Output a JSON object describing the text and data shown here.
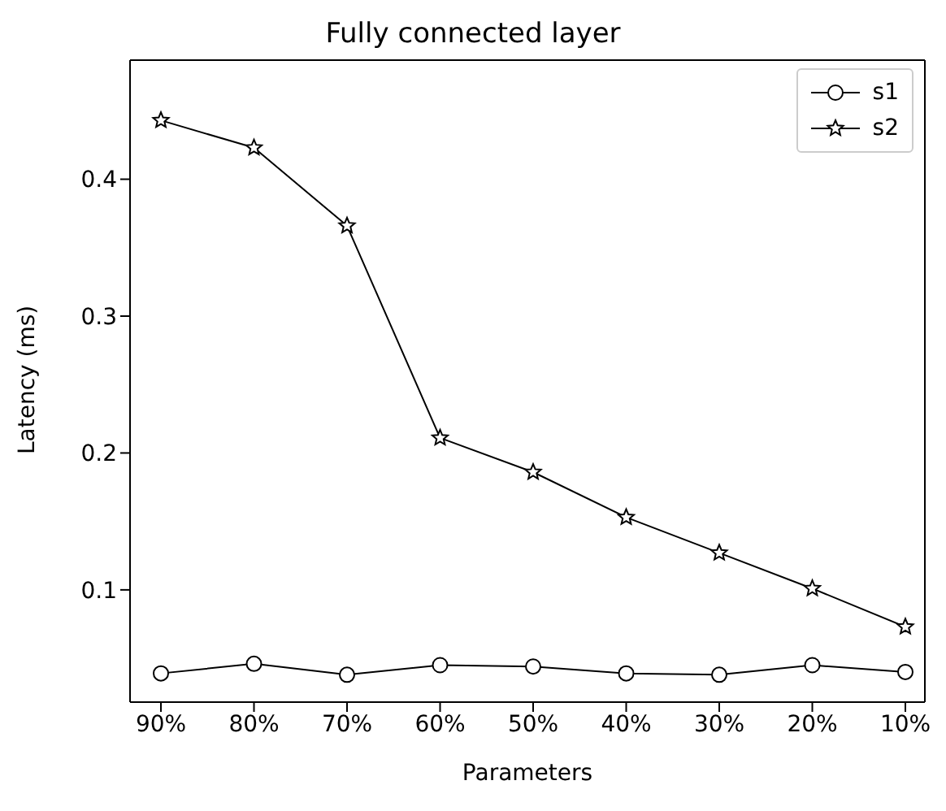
{
  "chart_data": {
    "type": "line",
    "title": "Fully connected layer",
    "xlabel": "Parameters",
    "ylabel": "Latency (ms)",
    "categories": [
      "90%",
      "80%",
      "70%",
      "60%",
      "50%",
      "40%",
      "30%",
      "20%",
      "10%"
    ],
    "series": [
      {
        "name": "s1",
        "color": "#000000",
        "marker": "circle",
        "values": [
          0.039,
          0.046,
          0.038,
          0.045,
          0.044,
          0.039,
          0.038,
          0.045,
          0.04
        ]
      },
      {
        "name": "s2",
        "color": "#000000",
        "marker": "star",
        "values": [
          0.443,
          0.423,
          0.366,
          0.211,
          0.186,
          0.153,
          0.127,
          0.101,
          0.073
        ]
      }
    ],
    "ylim": [
      0.018,
      0.487
    ],
    "yticks": [
      0.1,
      0.2,
      0.3,
      0.4
    ],
    "grid": false,
    "legend": "top right",
    "line_style": "solid"
  }
}
